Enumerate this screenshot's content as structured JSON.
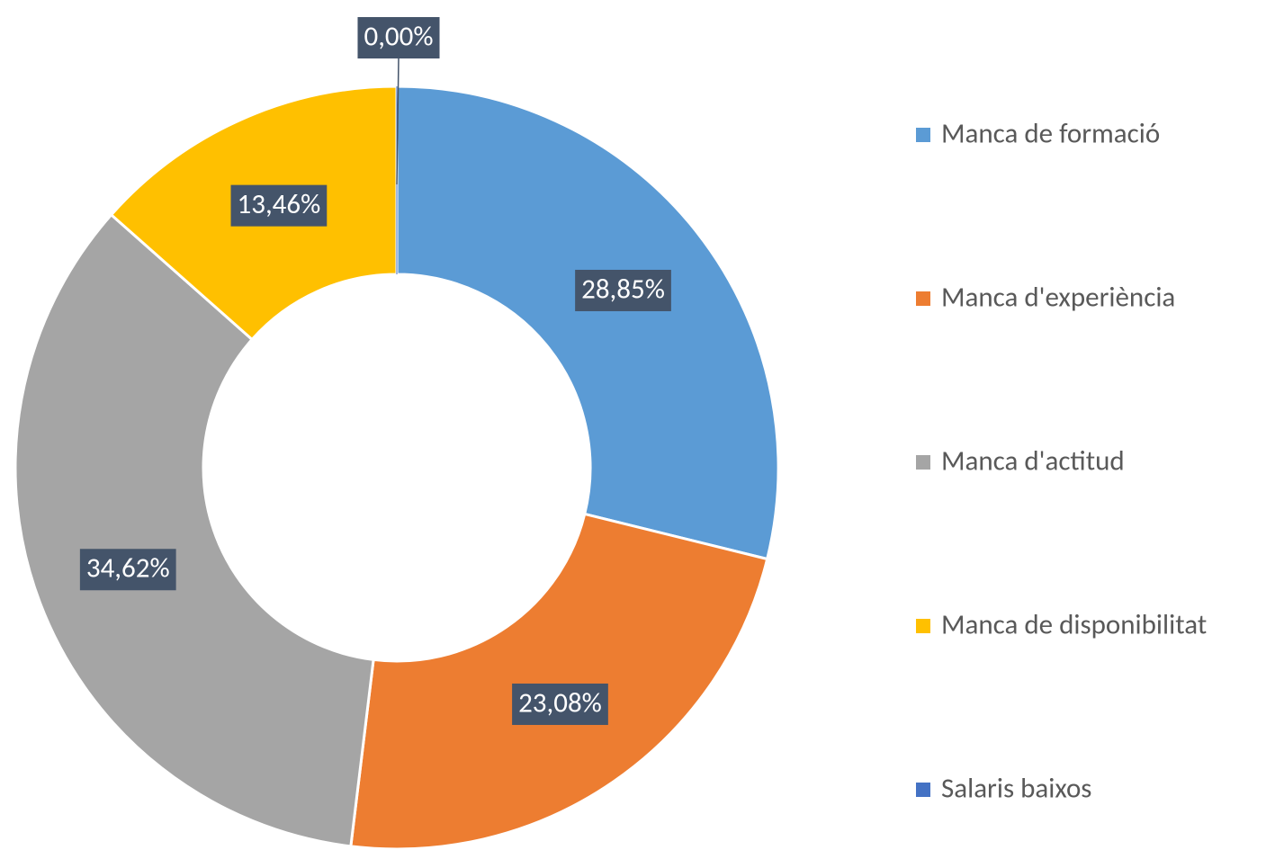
{
  "chart_data": {
    "type": "pie",
    "categories": [
      "Manca de formació",
      "Manca d'experiència",
      "Manca d'actitud",
      "Manca de disponibilitat",
      "Salaris baixos"
    ],
    "values": [
      28.85,
      23.08,
      34.62,
      13.46,
      0.0
    ],
    "value_labels": [
      "28,85%",
      "23,08%",
      "34,62%",
      "13,46%",
      "0,00%"
    ],
    "colors": [
      "#5b9bd5",
      "#ed7d31",
      "#a5a5a5",
      "#ffc000",
      "#4472c4"
    ],
    "donut": true,
    "legend": "right"
  }
}
